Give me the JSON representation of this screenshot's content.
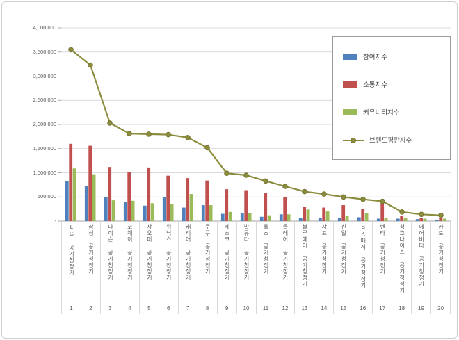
{
  "chart_data": {
    "type": "bar",
    "subtype": "grouped-bars-with-line-overlay",
    "title": "",
    "xlabel": "",
    "ylabel": "",
    "categories": [
      "LG 공기청정기",
      "삼성 공기청정기",
      "다이슨 공기청정기",
      "코웨이 공기청정기",
      "샤오미 공기청정기",
      "위닉스 공기청정기",
      "캐리어 공기청정기",
      "쿠쿠 공기청정기",
      "세스코 공기청정기",
      "발뮤다 공기청정기",
      "웰스 공기청정기",
      "클레어 공기청정기",
      "블루에어 공기청정기",
      "샤프 공기청정기",
      "신일 공기청정기",
      "SK매직 공기청정기",
      "벤타 공기청정기",
      "청호나이스 공기청정기",
      "에어비타 공기청정기",
      "카도 공기청정기"
    ],
    "ranks": [
      "1",
      "2",
      "3",
      "4",
      "5",
      "6",
      "7",
      "8",
      "9",
      "10",
      "11",
      "12",
      "13",
      "14",
      "15",
      "16",
      "17",
      "18",
      "19",
      "20"
    ],
    "series": [
      {
        "name": "참여지수",
        "type": "bar",
        "color": "#4F81BD",
        "values": [
          820000,
          730000,
          490000,
          390000,
          320000,
          500000,
          280000,
          330000,
          150000,
          160000,
          90000,
          140000,
          70000,
          70000,
          60000,
          80000,
          50000,
          50000,
          40000,
          30000
        ]
      },
      {
        "name": "소통지수",
        "type": "bar",
        "color": "#C0504D",
        "values": [
          1600000,
          1560000,
          1120000,
          1010000,
          1110000,
          940000,
          890000,
          840000,
          660000,
          640000,
          590000,
          500000,
          300000,
          280000,
          330000,
          250000,
          370000,
          100000,
          70000,
          60000
        ]
      },
      {
        "name": "커뮤니티지수",
        "type": "bar",
        "color": "#9BBB59",
        "values": [
          1090000,
          970000,
          430000,
          420000,
          370000,
          350000,
          560000,
          330000,
          190000,
          160000,
          120000,
          140000,
          240000,
          200000,
          110000,
          160000,
          70000,
          70000,
          50000,
          50000
        ]
      }
    ],
    "line_series": {
      "name": "브랜드평판지수",
      "type": "line",
      "marker": "circle",
      "color": "#8C8C3E",
      "values": [
        3550000,
        3230000,
        2030000,
        1810000,
        1800000,
        1790000,
        1730000,
        1520000,
        990000,
        950000,
        830000,
        720000,
        610000,
        560000,
        500000,
        450000,
        410000,
        190000,
        140000,
        120000
      ]
    },
    "ylim": [
      0,
      4000000
    ],
    "ytick_step": 500000,
    "ytick_labels": [
      "-",
      "500,000",
      "1,000,000",
      "1,500,000",
      "2,000,000",
      "2,500,000",
      "3,000,000",
      "3,500,000",
      "4,000,000"
    ],
    "grid": true,
    "legend_position": "top-right"
  }
}
